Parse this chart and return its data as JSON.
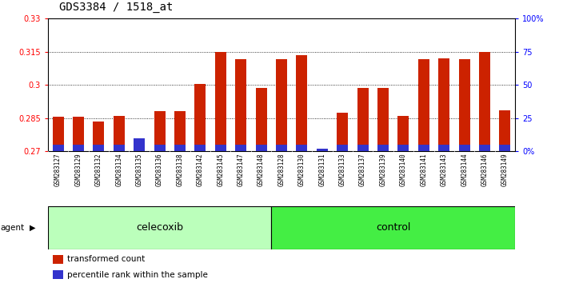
{
  "title": "GDS3384 / 1518_at",
  "samples": [
    "GSM283127",
    "GSM283129",
    "GSM283132",
    "GSM283134",
    "GSM283135",
    "GSM283136",
    "GSM283138",
    "GSM283142",
    "GSM283145",
    "GSM283147",
    "GSM283148",
    "GSM283128",
    "GSM283130",
    "GSM283131",
    "GSM283133",
    "GSM283137",
    "GSM283139",
    "GSM283140",
    "GSM283141",
    "GSM283143",
    "GSM283144",
    "GSM283146",
    "GSM283149"
  ],
  "red_values": [
    0.2855,
    0.2855,
    0.2835,
    0.286,
    0.2725,
    0.288,
    0.288,
    0.3005,
    0.3148,
    0.3115,
    0.2985,
    0.3115,
    0.3135,
    0.2705,
    0.2875,
    0.2985,
    0.2985,
    0.286,
    0.3115,
    0.312,
    0.3115,
    0.3148,
    0.2885
  ],
  "blue_percentile": [
    5,
    5,
    5,
    5,
    10,
    5,
    5,
    5,
    5,
    5,
    5,
    5,
    5,
    2,
    5,
    5,
    5,
    5,
    5,
    5,
    5,
    5,
    5
  ],
  "celecoxib_count": 11,
  "control_count": 12,
  "ylim_left": [
    0.27,
    0.33
  ],
  "ylim_right": [
    0,
    100
  ],
  "yticks_left": [
    0.27,
    0.285,
    0.3,
    0.315,
    0.33
  ],
  "yticks_right": [
    0,
    25,
    50,
    75,
    100
  ],
  "ytick_labels_left": [
    "0.27",
    "0.285",
    "0.3",
    "0.315",
    "0.33"
  ],
  "ytick_labels_right": [
    "0%",
    "25",
    "50",
    "75",
    "100%"
  ],
  "bar_color_red": "#cc2200",
  "bar_color_blue": "#3333cc",
  "agent_label": "agent",
  "group1_label": "celecoxib",
  "group2_label": "control",
  "group1_color": "#bbffbb",
  "group2_color": "#44ee44",
  "bar_width": 0.55,
  "title_fontsize": 10,
  "tick_fontsize": 7,
  "label_fontsize": 9,
  "sample_fontsize": 5.5
}
